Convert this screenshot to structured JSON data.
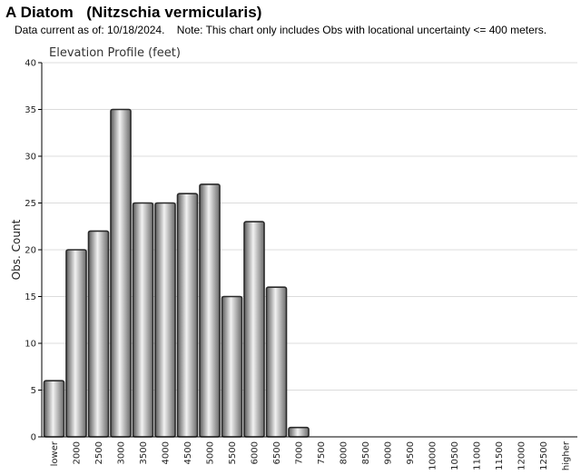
{
  "header": {
    "title": "A Diatom   (Nitzschia vermicularis)",
    "subtitle": "Data current as of: 10/18/2024.    Note: This chart only includes Obs with locational uncertainty <= 400 meters."
  },
  "chart_data": {
    "type": "bar",
    "title": "Elevation Profile (feet)",
    "xlabel": "",
    "ylabel": "Obs. Count",
    "ylim": [
      0,
      40
    ],
    "yticks": [
      0,
      5,
      10,
      15,
      20,
      25,
      30,
      35,
      40
    ],
    "grid": true,
    "categories": [
      "lower",
      "2000",
      "2500",
      "3000",
      "3500",
      "4000",
      "4500",
      "5000",
      "5500",
      "6000",
      "6500",
      "7000",
      "7500",
      "8000",
      "8500",
      "9000",
      "9500",
      "10000",
      "10500",
      "11000",
      "11500",
      "12000",
      "12500",
      "higher"
    ],
    "values": [
      6,
      20,
      22,
      35,
      25,
      25,
      26,
      27,
      15,
      23,
      16,
      1,
      0,
      0,
      0,
      0,
      0,
      0,
      0,
      0,
      0,
      0,
      0,
      0
    ],
    "colors": {
      "bar_dark": "#5a5a5a",
      "bar_light": "#f2f2f2",
      "bar_edge": "#2a2a2a",
      "grid": "#dcdcdc",
      "axis": "#000000"
    }
  }
}
